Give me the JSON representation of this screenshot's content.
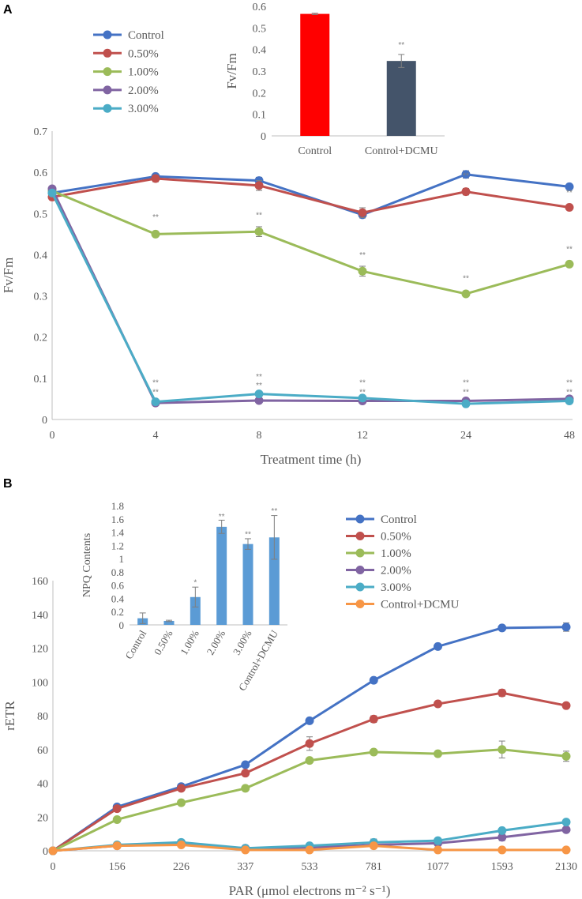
{
  "chart_data": [
    {
      "panel": "A",
      "type": "line",
      "title": "",
      "xlabel": "Treatment time (h)",
      "ylabel": "Fv/Fm",
      "categories": [
        "0",
        "4",
        "8",
        "12",
        "24",
        "48"
      ],
      "ylim": [
        0,
        0.7
      ],
      "yticks": [
        "0",
        "0.1",
        "0.2",
        "0.3",
        "0.4",
        "0.5",
        "0.6",
        "0.7"
      ],
      "legend_position": "top-left",
      "series": [
        {
          "name": "Control",
          "color": "#4472C4",
          "values": [
            0.55,
            0.59,
            0.58,
            0.497,
            0.595,
            0.565
          ],
          "err": [
            0,
            0.006,
            0.008,
            0.008,
            0.009,
            0.004
          ]
        },
        {
          "name": "0.50%",
          "color": "#C0504D",
          "values": [
            0.54,
            0.585,
            0.568,
            0.502,
            0.553,
            0.515
          ],
          "err": [
            0,
            0.008,
            0.012,
            0.012,
            0.008,
            0.006
          ]
        },
        {
          "name": "1.00%",
          "color": "#9BBB59",
          "values": [
            0.555,
            0.45,
            0.456,
            0.36,
            0.305,
            0.377
          ],
          "err": [
            0,
            0,
            0.012,
            0.012,
            0.004,
            0.006
          ]
        },
        {
          "name": "2.00%",
          "color": "#8064A2",
          "values": [
            0.56,
            0.04,
            0.046,
            0.045,
            0.045,
            0.05
          ],
          "err": [
            0,
            0,
            0,
            0,
            0,
            0
          ]
        },
        {
          "name": "3.00%",
          "color": "#4BACC6",
          "values": [
            0.55,
            0.043,
            0.062,
            0.052,
            0.038,
            0.045
          ],
          "err": [
            0,
            0.003,
            0.004,
            0.003,
            0.003,
            0.003
          ]
        }
      ],
      "annotations": [
        {
          "text": "**",
          "x_index": 1,
          "y": 0.485
        },
        {
          "text": "**",
          "x_index": 2,
          "y": 0.49
        },
        {
          "text": "**",
          "x_index": 3,
          "y": 0.393
        },
        {
          "text": "**",
          "x_index": 4,
          "y": 0.337
        },
        {
          "text": "**",
          "x_index": 5,
          "y": 0.408
        },
        {
          "text": "**",
          "x_index": 4,
          "y": 0.586
        },
        {
          "text": "**",
          "x_index": 5,
          "y": 0.545
        },
        {
          "text": "**",
          "x_index": 1,
          "y": 0.083
        },
        {
          "text": "**",
          "x_index": 1,
          "y": 0.06
        },
        {
          "text": "**",
          "x_index": 2,
          "y": 0.098
        },
        {
          "text": "**",
          "x_index": 2,
          "y": 0.077
        },
        {
          "text": "**",
          "x_index": 3,
          "y": 0.083
        },
        {
          "text": "**",
          "x_index": 3,
          "y": 0.06
        },
        {
          "text": "**",
          "x_index": 4,
          "y": 0.083
        },
        {
          "text": "**",
          "x_index": 4,
          "y": 0.06
        },
        {
          "text": "**",
          "x_index": 5,
          "y": 0.083
        },
        {
          "text": "**",
          "x_index": 5,
          "y": 0.06
        }
      ]
    },
    {
      "panel": "A-inset",
      "type": "bar",
      "title": "",
      "xlabel": "",
      "ylabel": "Fv/Fm",
      "categories": [
        "Control",
        "Control+DCMU"
      ],
      "values": [
        0.565,
        0.347
      ],
      "err": [
        0.003,
        0.03
      ],
      "colors": [
        "#FF0000",
        "#44546A"
      ],
      "ylim": [
        0,
        0.6
      ],
      "yticks": [
        "0",
        "0.1",
        "0.2",
        "0.3",
        "0.4",
        "0.5",
        "0.6"
      ],
      "annotations": [
        {
          "text": "**",
          "bar_index": 1,
          "y": 0.41
        }
      ]
    },
    {
      "panel": "B",
      "type": "line",
      "title": "",
      "xlabel": "PAR (μmol electrons m⁻² s⁻¹)",
      "ylabel": "rETR",
      "categories": [
        "0",
        "156",
        "226",
        "337",
        "533",
        "781",
        "1077",
        "1593",
        "2130"
      ],
      "ylim": [
        0,
        160
      ],
      "yticks": [
        "0",
        "20",
        "40",
        "60",
        "80",
        "100",
        "120",
        "140",
        "160"
      ],
      "legend_position": "top-right",
      "series": [
        {
          "name": "Control",
          "color": "#4472C4",
          "values": [
            0,
            26,
            38,
            51,
            77,
            101,
            121,
            132,
            132.5
          ],
          "err": [
            0,
            0,
            0,
            0,
            0,
            0,
            1.5,
            0,
            2.5
          ]
        },
        {
          "name": "0.50%",
          "color": "#C0504D",
          "values": [
            0,
            25,
            37,
            46,
            63.5,
            78,
            87,
            93.5,
            86
          ],
          "err": [
            0,
            0,
            1,
            0,
            4,
            2,
            0,
            2,
            0
          ]
        },
        {
          "name": "1.00%",
          "color": "#9BBB59",
          "values": [
            0,
            18.5,
            28.5,
            37,
            53.5,
            58.5,
            57.5,
            60,
            56
          ],
          "err": [
            0,
            0,
            0,
            0,
            0,
            1,
            0,
            5,
            3
          ]
        },
        {
          "name": "2.00%",
          "color": "#8064A2",
          "values": [
            0,
            3,
            4,
            1.5,
            2,
            3.5,
            4.5,
            8,
            12.5
          ],
          "err": [
            0,
            0,
            0,
            0,
            0,
            0,
            0,
            2,
            0
          ]
        },
        {
          "name": "3.00%",
          "color": "#4BACC6",
          "values": [
            0,
            3.5,
            5,
            1.5,
            3,
            5,
            6,
            12,
            17
          ],
          "err": [
            0,
            0,
            0,
            0,
            0,
            2,
            0,
            0,
            0
          ]
        },
        {
          "name": "Control+DCMU",
          "color": "#F79646",
          "values": [
            0,
            3,
            3.5,
            0.5,
            0.5,
            3,
            0.5,
            0.5,
            0.5
          ],
          "err": [
            0,
            0,
            0,
            0,
            0,
            0,
            0,
            0,
            0
          ]
        }
      ]
    },
    {
      "panel": "B-inset",
      "type": "bar",
      "title": "",
      "xlabel": "",
      "ylabel": "NPQ Contents",
      "categories": [
        "Control",
        "0.50%",
        "1.00%",
        "2.00%",
        "3.00%",
        "Control+DCMU"
      ],
      "values": [
        0.1,
        0.06,
        0.42,
        1.48,
        1.22,
        1.32
      ],
      "err": [
        0.08,
        0.01,
        0.15,
        0.1,
        0.08,
        0.33
      ],
      "color": "#5B9BD5",
      "ylim": [
        0,
        1.8
      ],
      "yticks": [
        "0",
        "0.2",
        "0.4",
        "0.6",
        "0.8",
        "1",
        "1.2",
        "1.4",
        "1.6",
        "1.8"
      ],
      "annotations": [
        {
          "text": "",
          "bar_index": 0,
          "y": 0
        },
        {
          "text": "",
          "bar_index": 1,
          "y": 0
        },
        {
          "text": "*",
          "bar_index": 2,
          "y": 0.6
        },
        {
          "text": "**",
          "bar_index": 3,
          "y": 1.6
        },
        {
          "text": "**",
          "bar_index": 4,
          "y": 1.33
        },
        {
          "text": "**",
          "bar_index": 5,
          "y": 1.68
        }
      ]
    }
  ],
  "panel_labels": [
    "A",
    "B"
  ]
}
